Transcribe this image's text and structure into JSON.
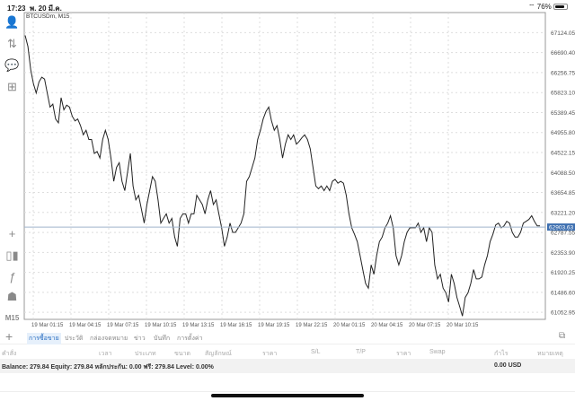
{
  "status": {
    "time": "17:23",
    "date": "พ. 20 มี.ค.",
    "battery": "76%",
    "battery_level": 0.76
  },
  "chart": {
    "symbol_label": "BTCUSDm, M15",
    "timeframe": "M15",
    "current_price": "62903.63",
    "line_color": "#222222",
    "price_tag_color": "#3d6fb0"
  },
  "chart_data": {
    "type": "line",
    "title": "BTCUSDm, M15",
    "y_ticks": [
      "67124.05",
      "66690.40",
      "66256.75",
      "65823.10",
      "65389.45",
      "64955.80",
      "64522.15",
      "64088.50",
      "63654.85",
      "63221.20",
      "62787.55",
      "62353.90",
      "61920.25",
      "61486.60",
      "61052.95"
    ],
    "x_ticks": [
      "19 Mar 01:15",
      "19 Mar 04:15",
      "19 Mar 07:15",
      "19 Mar 10:15",
      "19 Mar 13:15",
      "19 Mar 16:15",
      "19 Mar 19:15",
      "19 Mar 22:15",
      "20 Mar 01:15",
      "20 Mar 04:15",
      "20 Mar 07:15",
      "20 Mar 10:15"
    ],
    "ylim": [
      60900,
      67560
    ],
    "grid": true,
    "values": [
      67064,
      66822,
      66317,
      66015,
      65813,
      66055,
      66156,
      66116,
      65813,
      65510,
      65571,
      65248,
      65167,
      65712,
      65450,
      65551,
      65510,
      65309,
      65208,
      65248,
      65107,
      64905,
      65006,
      64805,
      64805,
      64502,
      64543,
      64401,
      64805,
      65006,
      64805,
      64401,
      63897,
      64199,
      64300,
      63897,
      63695,
      64099,
      64502,
      63796,
      63494,
      63594,
      63292,
      62989,
      63393,
      63695,
      63998,
      63897,
      63494,
      62989,
      63090,
      63191,
      62989,
      63090,
      62687,
      62485,
      63090,
      63191,
      63191,
      62989,
      63191,
      63191,
      63594,
      63494,
      63393,
      63191,
      63494,
      63695,
      63393,
      63494,
      63191,
      62888,
      62485,
      62687,
      62989,
      62788,
      62788,
      62888,
      62989,
      63191,
      63897,
      63998,
      64199,
      64401,
      64805,
      65006,
      65248,
      65410,
      65510,
      65208,
      65006,
      65107,
      64805,
      64401,
      64704,
      64905,
      64805,
      64905,
      64704,
      64764,
      64845,
      64905,
      64805,
      64603,
      64199,
      63796,
      63736,
      63796,
      63695,
      63796,
      63695,
      63897,
      63937,
      63857,
      63897,
      63857,
      63594,
      63191,
      62888,
      62747,
      62586,
      62283,
      61981,
      61678,
      61577,
      62082,
      61880,
      62283,
      62586,
      62687,
      62888,
      62989,
      63150,
      62888,
      62283,
      62082,
      62283,
      62586,
      62788,
      62888,
      62888,
      62888,
      62989,
      62788,
      62888,
      62586,
      62888,
      62788,
      62082,
      61779,
      61880,
      61577,
      61476,
      61275,
      61880,
      61678,
      61376,
      61174,
      60972,
      61376,
      61476,
      61678,
      61981,
      61779,
      61779,
      61819,
      62082,
      62283,
      62586,
      62747,
      62949,
      62989,
      62888,
      62929,
      63029,
      62989,
      62788,
      62687,
      62687,
      62788,
      62989,
      63029,
      63070,
      63150,
      63029,
      62929,
      62929
    ]
  },
  "toolbar": [
    "account-icon",
    "trade-icon",
    "chat-icon",
    "new-order-icon",
    "crosshair-icon",
    "indicators-icon",
    "function-icon",
    "objects-icon"
  ],
  "tabs": [
    "การซื้อขาย",
    "ประวัติ",
    "กล่องจดหมาย",
    "ข่าว",
    "บันทึก",
    "การตั้งค่า"
  ],
  "columns": [
    "คำสั่ง",
    "เวลา",
    "ประเภท",
    "ขนาด",
    "สัญลักษณ์",
    "ราคา",
    "S/L",
    "T/P",
    "ราคา",
    "Swap",
    "กำไร",
    "หมายเหตุ"
  ],
  "balance": {
    "text": "Balance: 279.84 Equity: 279.84 หลักประกัน: 0.00 ฟรี: 279.84 Level: 0.00%",
    "profit": "0.00  USD"
  }
}
